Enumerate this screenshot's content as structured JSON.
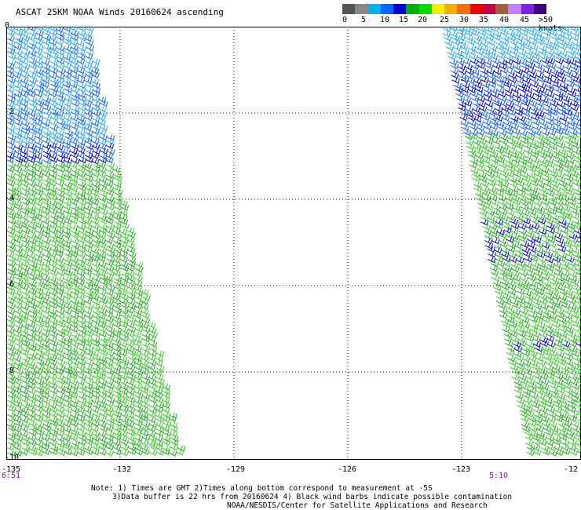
{
  "title": "ASCAT 25KM NOAA Winds 20160624 ascending",
  "legend": {
    "colors": [
      "#555555",
      "#888888",
      "#00b0f0",
      "#0066ff",
      "#0000cc",
      "#00b000",
      "#00dd00",
      "#f0f000",
      "#f0b000",
      "#f07000",
      "#f00000",
      "#c00040",
      "#a06040",
      "#c080ff",
      "#8020e0",
      "#400080"
    ],
    "labels": [
      "0",
      "5",
      "10",
      "15",
      "20",
      "25",
      "30",
      "35",
      "40",
      "45",
      ">50 knots"
    ]
  },
  "axes": {
    "x_ticks": [
      "-135",
      "-132",
      "-129",
      "-126",
      "-123",
      "-12"
    ],
    "y_ticks": [
      "0",
      "-2",
      "-4",
      "-6",
      "-8",
      "-10"
    ]
  },
  "times": {
    "left": "6:51",
    "right": "5:10"
  },
  "notes": {
    "line1": "Note: 1) Times are GMT 2)Times along bottom correspond to measurement at -5S",
    "line2": "3)Data buffer is 22 hrs from 20160624 4) Black wind barbs indicate possible contamination",
    "line3": "NOAA/NESDIS/Center for Satellite Applications and Research"
  }
}
